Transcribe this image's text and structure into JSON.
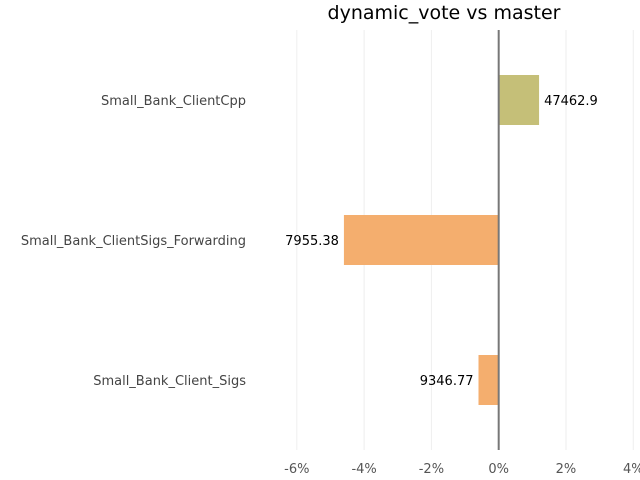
{
  "chart_data": {
    "type": "bar",
    "orientation": "horizontal",
    "title": "dynamic_vote vs master",
    "xlabel": "",
    "ylabel": "",
    "categories": [
      "Small_Bank_ClientCpp",
      "Small_Bank_ClientSigs_Forwarding",
      "Small_Bank_Client_Sigs"
    ],
    "values": [
      1.2,
      -4.6,
      -0.6
    ],
    "value_unit": "%",
    "data_labels": [
      "47462.9",
      "7955.38",
      "9346.77"
    ],
    "bar_colors": [
      "#c5bf78",
      "#f4ae6e",
      "#f4ae6e"
    ],
    "xlim": [
      -6.5,
      4.2
    ],
    "xticks": [
      -6,
      -4,
      -2,
      0,
      2,
      4
    ],
    "xtick_labels": [
      "-6%",
      "-4%",
      "-2%",
      "0%",
      "2%",
      "4%"
    ],
    "grid": true
  }
}
